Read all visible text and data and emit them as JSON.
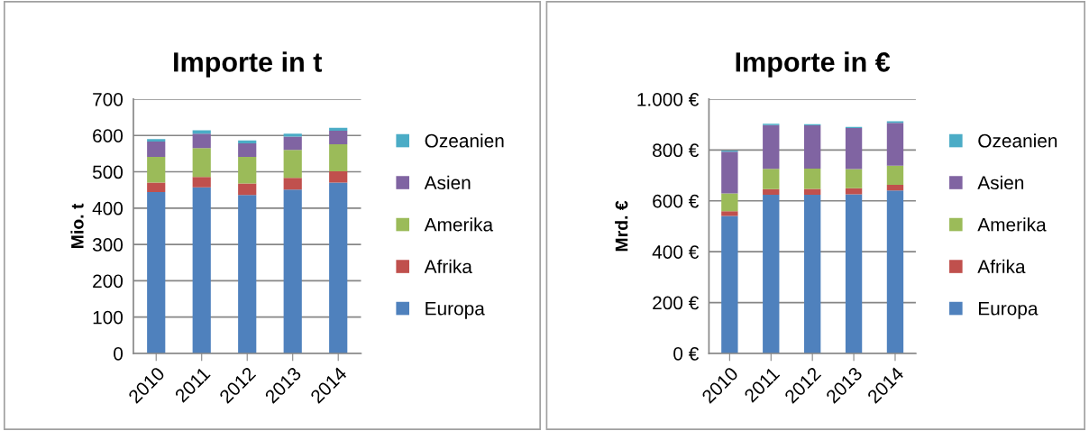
{
  "chart_data": [
    {
      "type": "bar",
      "title": "Importe in t",
      "ylabel": "Mio. t",
      "stacked": true,
      "grid": "y",
      "legend": "right",
      "categories": [
        "2010",
        "2011",
        "2012",
        "2013",
        "2014"
      ],
      "ylim": [
        0,
        700
      ],
      "yticks": [
        0,
        100,
        200,
        300,
        400,
        500,
        600,
        700
      ],
      "series": [
        {
          "name": "Europa",
          "color": "#4f81bd",
          "values": [
            444,
            457,
            436,
            451,
            470
          ]
        },
        {
          "name": "Afrika",
          "color": "#c0504d",
          "values": [
            26,
            29,
            32,
            32,
            31
          ]
        },
        {
          "name": "Amerika",
          "color": "#9bbb59",
          "values": [
            71,
            79,
            73,
            77,
            75
          ]
        },
        {
          "name": "Asien",
          "color": "#8064a2",
          "values": [
            42,
            40,
            37,
            37,
            37
          ]
        },
        {
          "name": "Ozeanien",
          "color": "#4bacc6",
          "values": [
            7,
            9,
            8,
            8,
            8
          ]
        }
      ]
    },
    {
      "type": "bar",
      "title": "Importe in €",
      "ylabel": "Mrd. €",
      "stacked": true,
      "grid": "y",
      "legend": "right",
      "categories": [
        "2010",
        "2011",
        "2012",
        "2013",
        "2014"
      ],
      "ylim": [
        0,
        1000
      ],
      "yticks": [
        {
          "value": 0,
          "label": "0 €"
        },
        {
          "value": 200,
          "label": "200 €"
        },
        {
          "value": 400,
          "label": "400 €"
        },
        {
          "value": 600,
          "label": "600 €"
        },
        {
          "value": 800,
          "label": "800 €"
        },
        {
          "value": 1000,
          "label": "1.000 €"
        }
      ],
      "series": [
        {
          "name": "Europa",
          "color": "#4f81bd",
          "values": [
            541,
            624,
            624,
            626,
            641
          ]
        },
        {
          "name": "Afrika",
          "color": "#c0504d",
          "values": [
            18,
            22,
            23,
            24,
            22
          ]
        },
        {
          "name": "Amerika",
          "color": "#9bbb59",
          "values": [
            70,
            80,
            80,
            75,
            75
          ]
        },
        {
          "name": "Asien",
          "color": "#8064a2",
          "values": [
            164,
            172,
            170,
            161,
            169
          ]
        },
        {
          "name": "Ozeanien",
          "color": "#4bacc6",
          "values": [
            5,
            5,
            4,
            5,
            6
          ]
        }
      ]
    }
  ]
}
